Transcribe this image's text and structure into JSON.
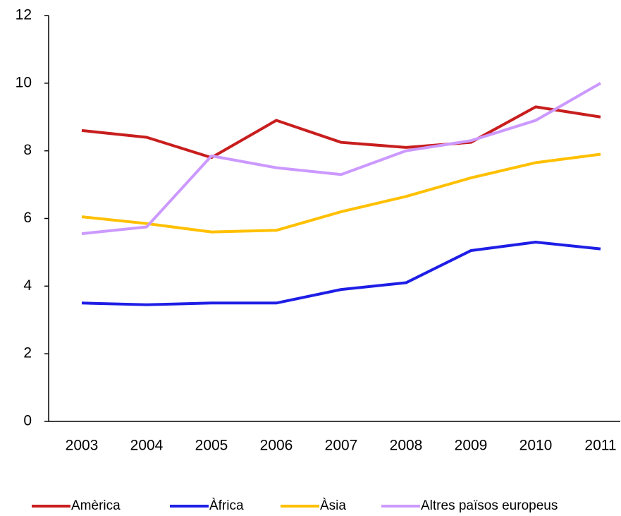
{
  "chart_data": {
    "type": "line",
    "categories": [
      "2003",
      "2004",
      "2005",
      "2006",
      "2007",
      "2008",
      "2009",
      "2010",
      "2011"
    ],
    "series": [
      {
        "name": "Amèrica",
        "color": "#c81e1e",
        "values": [
          8.6,
          8.4,
          7.8,
          8.9,
          8.25,
          8.1,
          8.25,
          9.3,
          9.0
        ]
      },
      {
        "name": "Àfrica",
        "color": "#1e1ee6",
        "values": [
          3.5,
          3.45,
          3.5,
          3.5,
          3.9,
          4.1,
          5.05,
          5.3,
          5.1
        ]
      },
      {
        "name": "Àsia",
        "color": "#ffc000",
        "values": [
          6.05,
          5.85,
          5.6,
          5.65,
          6.2,
          6.65,
          7.2,
          7.65,
          7.9
        ]
      },
      {
        "name": "Altres països europeus",
        "color": "#cc99ff",
        "values": [
          5.55,
          5.75,
          7.85,
          7.5,
          7.3,
          8.0,
          8.3,
          8.9,
          10.0
        ]
      }
    ],
    "ylim": [
      0,
      12
    ],
    "yticks": [
      0,
      2,
      4,
      6,
      8,
      10,
      12
    ],
    "grid": false,
    "legend": "bottom"
  }
}
